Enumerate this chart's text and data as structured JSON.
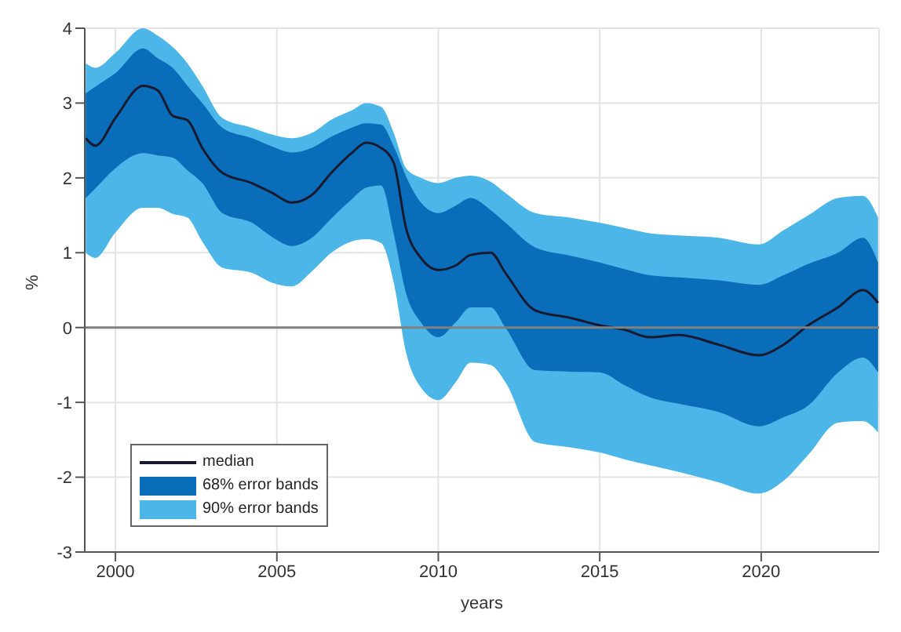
{
  "chart_data": {
    "type": "line",
    "xlabel": "years",
    "ylabel": "%",
    "xlim": [
      1999.05,
      2023.65
    ],
    "xticks": [
      2000,
      2005,
      2010,
      2015,
      2020
    ],
    "ylim": [
      -3,
      4
    ],
    "yticks": [
      -3,
      -2,
      -1,
      0,
      1,
      2,
      3,
      4
    ],
    "grid": true,
    "legend": "bottom left",
    "ref_lines": [
      {
        "axis": "y",
        "value": 0,
        "color": "#808080"
      }
    ],
    "x": [
      1999.08,
      1999.38,
      2000,
      2000.85,
      2001.31,
      2001.77,
      2002.23,
      2002.69,
      2003.31,
      2004.23,
      2004.85,
      2005.46,
      2006.08,
      2006.69,
      2007.31,
      2007.77,
      2008.23,
      2008.62,
      2009.0,
      2009.46,
      2010.0,
      2010.54,
      2011.0,
      2011.62,
      2012.08,
      2013.0,
      2014.08,
      2015.0,
      2015.77,
      2016.54,
      2017.46,
      2018.69,
      2019.92,
      2020.69,
      2021.46,
      2022.38,
      2023.15,
      2023.62
    ],
    "series": [
      {
        "name": "median",
        "color": "#1a1a2e",
        "values": [
          2.53,
          2.43,
          2.8,
          3.23,
          3.17,
          2.83,
          2.77,
          2.4,
          2.07,
          1.93,
          1.8,
          1.67,
          1.77,
          2.07,
          2.33,
          2.47,
          2.4,
          2.2,
          1.33,
          0.93,
          0.77,
          0.83,
          0.97,
          1.0,
          0.73,
          0.23,
          0.13,
          0.03,
          -0.03,
          -0.13,
          -0.1,
          -0.23,
          -0.37,
          -0.23,
          0.03,
          0.27,
          0.5,
          0.33
        ]
      },
      {
        "name": "68% error bands",
        "color": "#0a6dba",
        "values": [
          null,
          null,
          null,
          null,
          null,
          null,
          null,
          null,
          null,
          null,
          null,
          null,
          null,
          null,
          null,
          null,
          null,
          null,
          null,
          null,
          null,
          null,
          null,
          null,
          null,
          null,
          null,
          null,
          null,
          null,
          null,
          null,
          null,
          null,
          null,
          null,
          null,
          null
        ],
        "lower": [
          1.73,
          1.86,
          2.13,
          2.33,
          2.3,
          2.27,
          2.1,
          1.93,
          1.53,
          1.4,
          1.21,
          1.09,
          1.2,
          1.46,
          1.71,
          1.87,
          1.9,
          1.25,
          0.46,
          0.07,
          -0.13,
          0.07,
          0.27,
          0.27,
          0.0,
          -0.57,
          -0.59,
          -0.6,
          -0.77,
          -0.93,
          -1.02,
          -1.13,
          -1.32,
          -1.2,
          -1.04,
          -0.6,
          -0.4,
          -0.6
        ],
        "upper": [
          3.13,
          3.22,
          3.4,
          3.73,
          3.6,
          3.47,
          3.23,
          3.0,
          2.67,
          2.53,
          2.42,
          2.34,
          2.4,
          2.55,
          2.67,
          2.73,
          2.71,
          2.42,
          2.02,
          1.67,
          1.53,
          1.63,
          1.73,
          1.57,
          1.4,
          1.07,
          0.96,
          0.87,
          0.78,
          0.7,
          0.67,
          0.63,
          0.57,
          0.7,
          0.85,
          1.0,
          1.2,
          0.87
        ]
      },
      {
        "name": "90% error bands",
        "color": "#4cb6e8",
        "values": [
          null,
          null,
          null,
          null,
          null,
          null,
          null,
          null,
          null,
          null,
          null,
          null,
          null,
          null,
          null,
          null,
          null,
          null,
          null,
          null,
          null,
          null,
          null,
          null,
          null,
          null,
          null,
          null,
          null,
          null,
          null,
          null,
          null,
          null,
          null,
          null,
          null,
          null
        ],
        "lower": [
          1.0,
          0.93,
          1.27,
          1.6,
          1.6,
          1.52,
          1.47,
          1.15,
          0.8,
          0.73,
          0.6,
          0.55,
          0.75,
          1.0,
          1.15,
          1.18,
          1.13,
          0.6,
          -0.33,
          -0.8,
          -0.97,
          -0.73,
          -0.47,
          -0.5,
          -0.73,
          -1.53,
          -1.6,
          -1.67,
          -1.76,
          -1.84,
          -1.93,
          -2.07,
          -2.22,
          -2.05,
          -1.7,
          -1.27,
          -1.25,
          -1.4
        ],
        "upper": [
          3.53,
          3.47,
          3.67,
          4.0,
          3.9,
          3.75,
          3.53,
          3.23,
          2.8,
          2.67,
          2.58,
          2.53,
          2.6,
          2.78,
          2.9,
          3.0,
          2.95,
          2.6,
          2.13,
          2.0,
          1.93,
          2.0,
          2.03,
          1.95,
          1.8,
          1.53,
          1.47,
          1.4,
          1.33,
          1.26,
          1.23,
          1.2,
          1.11,
          1.3,
          1.5,
          1.73,
          1.76,
          1.47
        ]
      }
    ]
  }
}
